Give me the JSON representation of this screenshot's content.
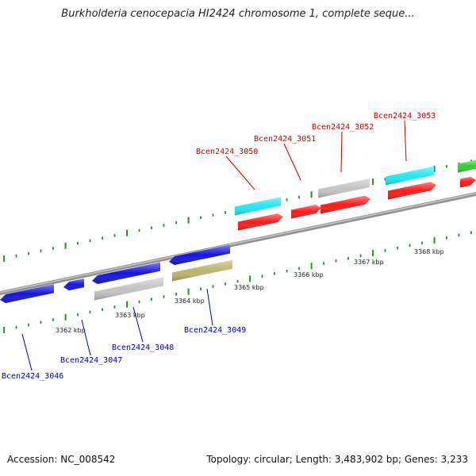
{
  "title": "Burkholderia cenocepacia HI2424 chromosome 1, complete seque...",
  "footer": {
    "accession": "Accession: NC_008542",
    "summary": "Topology: circular; Length: 3,483,902 bp; Genes: 3,233"
  },
  "colors": {
    "backbone": "#8c8c8c",
    "tick": "#2f8a2f",
    "label_top": "#cc0000",
    "label_bottom": "#0000bb",
    "red": "#ff1a1a",
    "cyan": "#22e8f2",
    "gray": "#c4c4c4",
    "blue": "#1515e0",
    "olive": "#bcb46e",
    "green": "#33cc33"
  },
  "scale_labels": [
    "3362 kbp",
    "3363 kbp",
    "3364 kbp",
    "3365 kbp",
    "3366 kbp",
    "3367 kbp",
    "3368 kbp"
  ],
  "genes_top": [
    {
      "label": "Bcen2424_3050"
    },
    {
      "label": "Bcen2424_3051"
    },
    {
      "label": "Bcen2424_3052"
    },
    {
      "label": "Bcen2424_3053"
    }
  ],
  "genes_bottom": [
    {
      "label": "Bcen2424_3046"
    },
    {
      "label": "Bcen2424_3047"
    },
    {
      "label": "Bcen2424_3048"
    },
    {
      "label": "Bcen2424_3049"
    }
  ]
}
